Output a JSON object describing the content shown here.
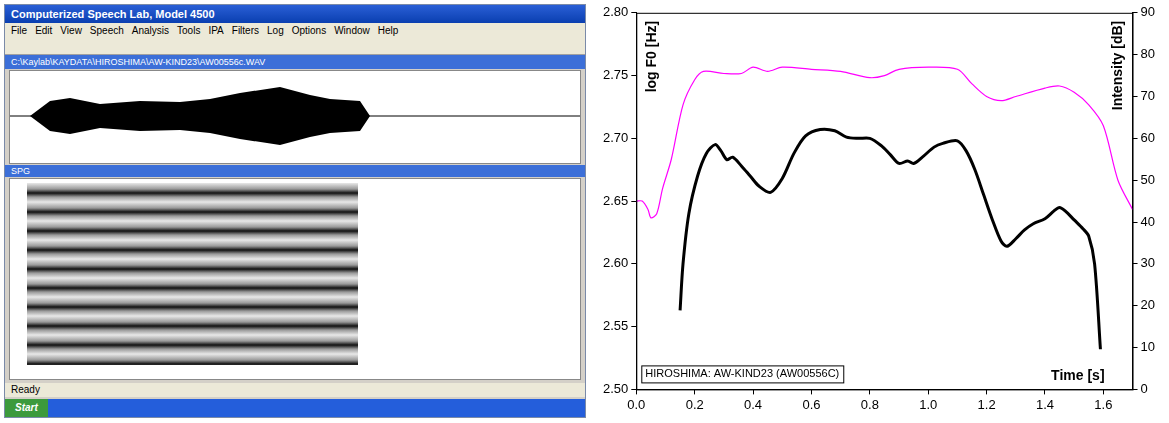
{
  "screenshot": {
    "title": "Computerized Speech Lab, Model 4500",
    "menu": [
      "File",
      "Edit",
      "View",
      "Speech",
      "Analysis",
      "Tools",
      "IPA",
      "Filters",
      "Log",
      "Options",
      "Window",
      "Help"
    ],
    "file_path": "C:\\Kaylab\\KAYDATA\\HIROSHIMA\\AW-KIND23\\AW00556c.WAV",
    "panel": "SPG",
    "status": "Ready",
    "taskbar": "Start"
  },
  "chart_data": {
    "type": "line",
    "ylabel": "log F0 [Hz]",
    "y2label": "Intensity [dB]",
    "xlabel": "Time [s]",
    "annotations": [
      "HIROSHIMA: AW-KIND23 (AW00556C)"
    ],
    "xlim": [
      0,
      1.7
    ],
    "xticks": [
      {
        "value": 0,
        "label": "0.0"
      },
      0.2,
      0.4,
      0.6,
      0.8,
      {
        "value": 1,
        "label": "1.0"
      },
      1.2,
      1.4,
      1.6
    ],
    "ylim": [
      2.5,
      2.8
    ],
    "yticks": [
      {
        "value": 2.5,
        "label": "2.50"
      },
      2.55,
      {
        "value": 2.6,
        "label": "2.60"
      },
      2.65,
      {
        "value": 2.7,
        "label": "2.70"
      },
      2.75,
      {
        "value": 2.8,
        "label": "2.80"
      }
    ],
    "y2lim": [
      0,
      90
    ],
    "y2ticks": [
      0,
      10,
      20,
      30,
      40,
      50,
      60,
      70,
      80,
      90
    ],
    "grid": false,
    "series": [
      {
        "color": "#000000",
        "marker": "none",
        "line_style": "solid",
        "x": [
          0.15,
          0.16,
          0.18,
          0.21,
          0.24,
          0.27,
          0.29,
          0.31,
          0.33,
          0.36,
          0.39,
          0.42,
          0.46,
          0.5,
          0.54,
          0.58,
          0.63,
          0.68,
          0.72,
          0.76,
          0.8,
          0.84,
          0.87,
          0.9,
          0.93,
          0.95,
          0.98,
          1.02,
          1.05,
          1.1,
          1.13,
          1.16,
          1.19,
          1.22,
          1.25,
          1.27,
          1.3,
          1.33,
          1.36,
          1.4,
          1.43,
          1.45,
          1.47,
          1.5,
          1.53,
          1.55,
          1.57,
          1.59
        ],
        "values": [
          2.563,
          2.6,
          2.64,
          2.67,
          2.688,
          2.695,
          2.69,
          2.683,
          2.685,
          2.678,
          2.67,
          2.662,
          2.657,
          2.668,
          2.688,
          2.702,
          2.707,
          2.706,
          2.701,
          2.7,
          2.7,
          2.694,
          2.687,
          2.68,
          2.682,
          2.68,
          2.685,
          2.693,
          2.696,
          2.698,
          2.69,
          2.675,
          2.655,
          2.635,
          2.618,
          2.614,
          2.62,
          2.627,
          2.632,
          2.636,
          2.642,
          2.645,
          2.642,
          2.635,
          2.628,
          2.622,
          2.6,
          2.532
        ]
      },
      {
        "color": "#ff00ff",
        "axis": "y2",
        "marker": "none",
        "line_style": "solid",
        "x": [
          0.0,
          0.02,
          0.04,
          0.05,
          0.07,
          0.09,
          0.12,
          0.16,
          0.2,
          0.23,
          0.3,
          0.36,
          0.4,
          0.45,
          0.5,
          0.6,
          0.7,
          0.8,
          0.85,
          0.9,
          1.0,
          1.1,
          1.15,
          1.2,
          1.25,
          1.3,
          1.4,
          1.45,
          1.5,
          1.55,
          1.6,
          1.65,
          1.7
        ],
        "values": [
          45,
          45,
          43,
          41,
          42,
          48,
          55,
          68,
          74,
          76,
          75.5,
          75.5,
          77,
          76,
          77,
          76.5,
          76,
          74.5,
          75,
          76.5,
          77,
          76.5,
          73,
          70,
          69,
          70,
          72,
          72.5,
          71,
          68,
          63,
          50,
          43
        ]
      }
    ]
  }
}
